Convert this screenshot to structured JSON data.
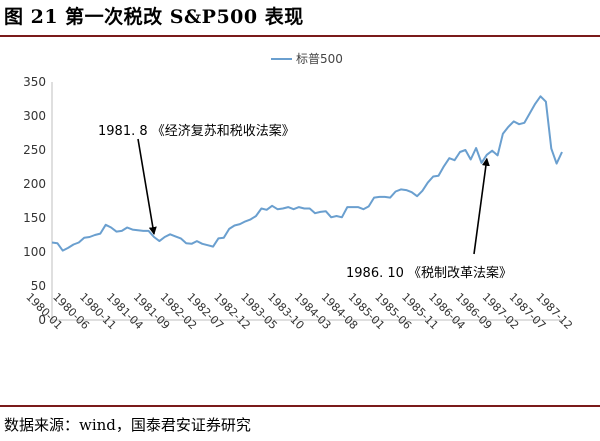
{
  "header": {
    "title": "图 21  第一次税改  S&P500 表现"
  },
  "footer": {
    "source": "数据来源：wind，国泰君安证券研究"
  },
  "chart_data": {
    "type": "line",
    "title": "",
    "xlabel": "",
    "ylabel": "",
    "ylim": [
      0,
      350
    ],
    "yticks": [
      0,
      50,
      100,
      150,
      200,
      250,
      300,
      350
    ],
    "grid": false,
    "legend": "top-center",
    "line_color": "#6a9fcf",
    "x_tick_labels": [
      "1980-01",
      "1980-06",
      "1980-11",
      "1981-04",
      "1981-09",
      "1982-02",
      "1982-07",
      "1982-12",
      "1983-05",
      "1983-10",
      "1984-03",
      "1984-08",
      "1985-01",
      "1985-06",
      "1985-11",
      "1986-04",
      "1986-09",
      "1987-02",
      "1987-07",
      "1987-12"
    ],
    "series": [
      {
        "name": "标普500",
        "x": [
          "1980-01",
          "1980-02",
          "1980-03",
          "1980-04",
          "1980-05",
          "1980-06",
          "1980-07",
          "1980-08",
          "1980-09",
          "1980-10",
          "1980-11",
          "1980-12",
          "1981-01",
          "1981-02",
          "1981-03",
          "1981-04",
          "1981-05",
          "1981-06",
          "1981-07",
          "1981-08",
          "1981-09",
          "1981-10",
          "1981-11",
          "1981-12",
          "1982-01",
          "1982-02",
          "1982-03",
          "1982-04",
          "1982-05",
          "1982-06",
          "1982-07",
          "1982-08",
          "1982-09",
          "1982-10",
          "1982-11",
          "1982-12",
          "1983-01",
          "1983-02",
          "1983-03",
          "1983-04",
          "1983-05",
          "1983-06",
          "1983-07",
          "1983-08",
          "1983-09",
          "1983-10",
          "1983-11",
          "1983-12",
          "1984-01",
          "1984-02",
          "1984-03",
          "1984-04",
          "1984-05",
          "1984-06",
          "1984-07",
          "1984-08",
          "1984-09",
          "1984-10",
          "1984-11",
          "1984-12",
          "1985-01",
          "1985-02",
          "1985-03",
          "1985-04",
          "1985-05",
          "1985-06",
          "1985-07",
          "1985-08",
          "1985-09",
          "1985-10",
          "1985-11",
          "1985-12",
          "1986-01",
          "1986-02",
          "1986-03",
          "1986-04",
          "1986-05",
          "1986-06",
          "1986-07",
          "1986-08",
          "1986-09",
          "1986-10",
          "1986-11",
          "1986-12",
          "1987-01",
          "1987-02",
          "1987-03",
          "1987-04",
          "1987-05",
          "1987-06",
          "1987-07",
          "1987-08",
          "1987-09",
          "1987-10",
          "1987-11",
          "1987-12"
        ],
        "values": [
          114,
          113,
          102,
          106,
          111,
          114,
          121,
          122,
          125,
          127,
          140,
          136,
          130,
          131,
          136,
          133,
          132,
          131,
          131,
          122,
          116,
          122,
          126,
          123,
          120,
          113,
          112,
          116,
          112,
          110,
          108,
          120,
          121,
          134,
          139,
          141,
          145,
          148,
          153,
          164,
          162,
          168,
          163,
          164,
          166,
          163,
          166,
          164,
          164,
          157,
          159,
          160,
          151,
          153,
          151,
          166,
          166,
          166,
          163,
          167,
          180,
          181,
          181,
          180,
          189,
          192,
          191,
          188,
          182,
          190,
          202,
          211,
          212,
          226,
          238,
          235,
          247,
          250,
          236,
          253,
          231,
          243,
          249,
          242,
          274,
          284,
          292,
          288,
          290,
          304,
          318,
          329,
          321,
          252,
          230,
          247
        ]
      }
    ]
  },
  "annotations": [
    {
      "text": "1981. 8  《经济复苏和税收法案》",
      "x": "1981-08",
      "y": 122
    },
    {
      "text": "1986. 10  《税制改革法案》",
      "x": "1986-10",
      "y": 243
    }
  ]
}
